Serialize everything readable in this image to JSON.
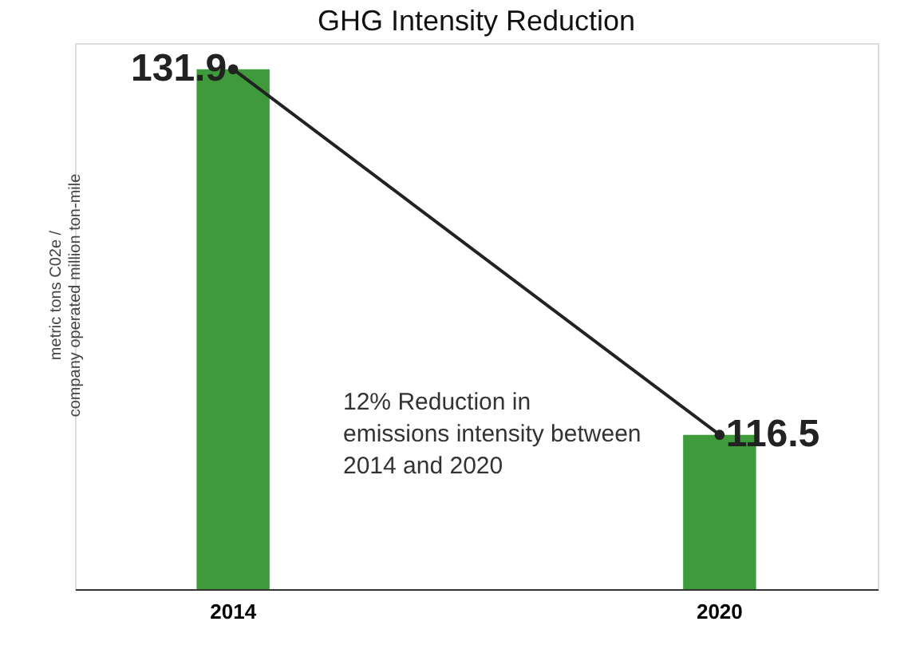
{
  "chart_data": {
    "type": "bar",
    "title": "GHG Intensity Reduction",
    "ylabel": "metric tons C02e / company operated million ton-mile",
    "categories": [
      "2014",
      "2020"
    ],
    "series": [
      {
        "color": "#3f9a3c",
        "values": [
          131.9,
          116.5
        ],
        "value_labels": [
          "131.9",
          "116.5"
        ]
      },
      {
        "type": "line",
        "color": "#222222",
        "values": [
          131.9,
          116.5
        ],
        "marker": "circle"
      }
    ],
    "ylim": [
      110,
      133
    ],
    "tick_labels": "x",
    "grid": false,
    "annotations": [
      "12% Reduction in emissions intensity between 2014 and 2020"
    ]
  }
}
